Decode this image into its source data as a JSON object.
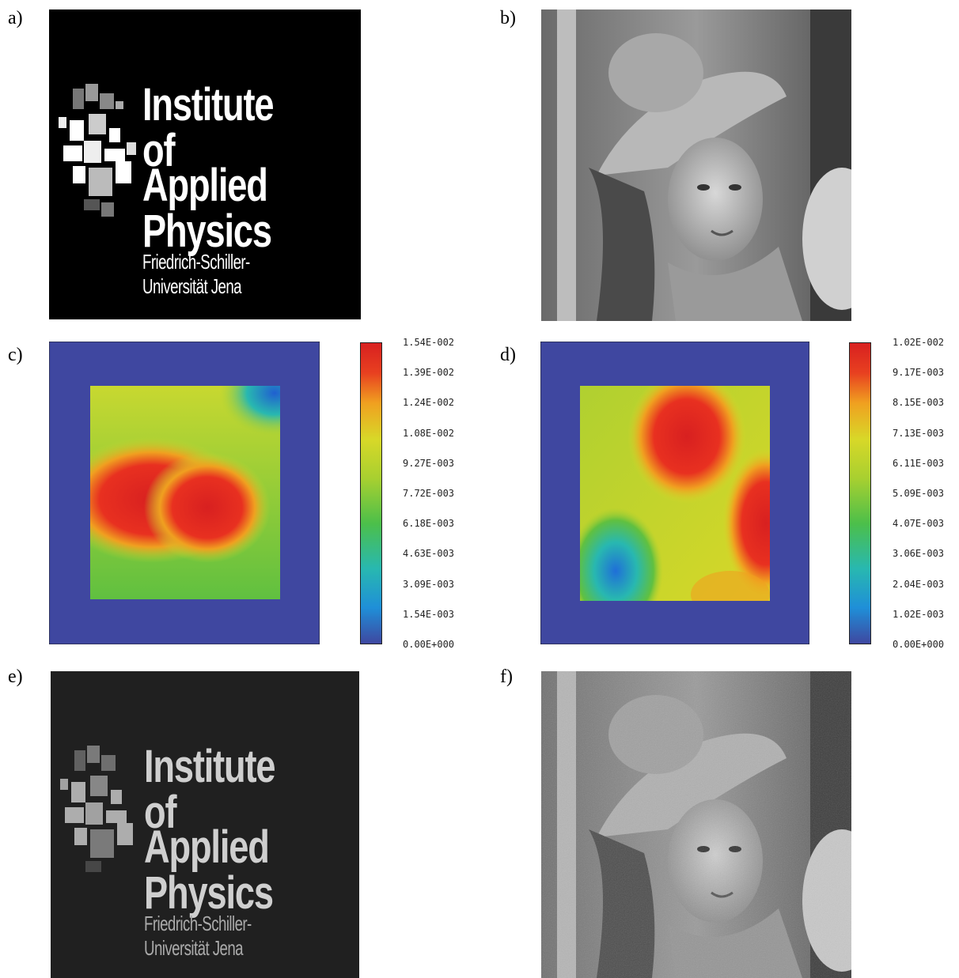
{
  "panels": {
    "a": {
      "label": "a)"
    },
    "b": {
      "label": "b)"
    },
    "c": {
      "label": "c)"
    },
    "d": {
      "label": "d)"
    },
    "e": {
      "label": "e)"
    },
    "f": {
      "label": "f)"
    }
  },
  "logo": {
    "line1": "Institute of",
    "line2": "Applied Physics",
    "line3": "Friedrich-Schiller-Universität Jena"
  },
  "colorbar_c": {
    "ticks": [
      "1.54E-002",
      "1.39E-002",
      "1.24E-002",
      "1.08E-002",
      "9.27E-003",
      "7.72E-003",
      "6.18E-003",
      "4.63E-003",
      "3.09E-003",
      "1.54E-003",
      "0.00E+000"
    ]
  },
  "colorbar_d": {
    "ticks": [
      "1.02E-002",
      "9.17E-003",
      "8.15E-003",
      "7.13E-003",
      "6.11E-003",
      "5.09E-003",
      "4.07E-003",
      "3.06E-003",
      "2.04E-003",
      "1.02E-003",
      "0.00E+000"
    ]
  },
  "colors": {
    "background_blue": "#3f47a0",
    "colormap": [
      "#3f47a0",
      "#1f8fd8",
      "#28b8b0",
      "#4cbf4a",
      "#a8d030",
      "#d8d828",
      "#f0a020",
      "#e84020",
      "#d82020"
    ]
  }
}
